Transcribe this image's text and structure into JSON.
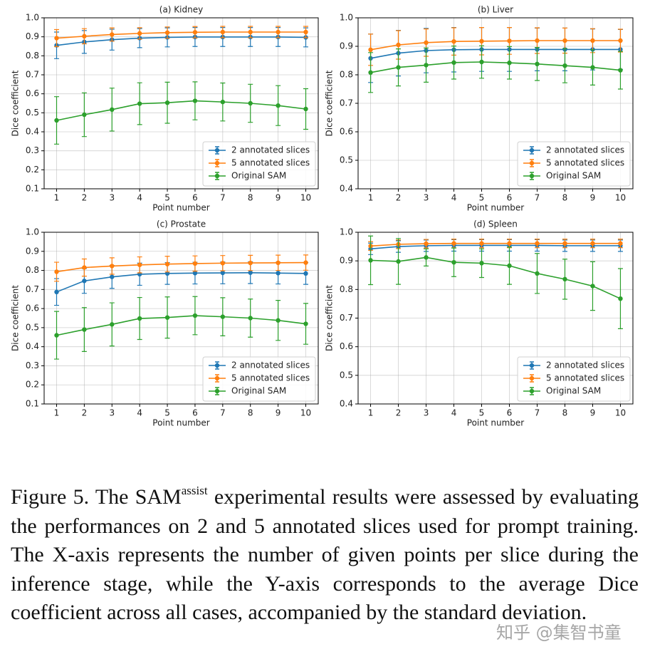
{
  "chart_data": [
    {
      "type": "line",
      "title": "(a) Kidney",
      "xlabel": "Point number",
      "ylabel": "Dice coefficient",
      "x": [
        1,
        2,
        3,
        4,
        5,
        6,
        7,
        8,
        9,
        10
      ],
      "xlim": [
        0.55,
        10.45
      ],
      "xticks": [
        1,
        2,
        3,
        4,
        5,
        6,
        7,
        8,
        9,
        10
      ],
      "ylim": [
        0.1,
        1.0
      ],
      "yticks": [
        0.1,
        0.2,
        0.3,
        0.4,
        0.5,
        0.6,
        0.7,
        0.8,
        0.9,
        {
          "value": 1.0,
          "label": "1.0"
        }
      ],
      "grid": true,
      "legend": "lower right",
      "series": [
        {
          "name": "2 annotated slices",
          "color": "#1f77b4",
          "values": [
            0.855,
            0.873,
            0.885,
            0.893,
            0.897,
            0.899,
            0.899,
            0.899,
            0.899,
            0.897
          ],
          "errors": [
            0.07,
            0.06,
            0.055,
            0.05,
            0.05,
            0.05,
            0.05,
            0.05,
            0.05,
            0.05
          ]
        },
        {
          "name": "5 annotated slices",
          "color": "#ff7f0e",
          "values": [
            0.893,
            0.903,
            0.912,
            0.918,
            0.922,
            0.924,
            0.925,
            0.925,
            0.925,
            0.925
          ],
          "errors": [
            0.045,
            0.04,
            0.035,
            0.03,
            0.03,
            0.03,
            0.03,
            0.03,
            0.03,
            0.03
          ]
        },
        {
          "name": "Original SAM",
          "color": "#2ca02c",
          "values": [
            0.46,
            0.49,
            0.517,
            0.548,
            0.553,
            0.563,
            0.557,
            0.55,
            0.538,
            0.52
          ],
          "errors": [
            0.125,
            0.115,
            0.113,
            0.11,
            0.108,
            0.1,
            0.1,
            0.1,
            0.105,
            0.107
          ]
        }
      ]
    },
    {
      "type": "line",
      "title": "(b) Liver",
      "xlabel": "Point number",
      "ylabel": "Dice coefficient",
      "x": [
        1,
        2,
        3,
        4,
        5,
        6,
        7,
        8,
        9,
        10
      ],
      "xlim": [
        0.55,
        10.45
      ],
      "xticks": [
        1,
        2,
        3,
        4,
        5,
        6,
        7,
        8,
        9,
        10
      ],
      "ylim": [
        0.4,
        1.0
      ],
      "yticks": [
        0.4,
        0.5,
        0.6,
        0.7,
        0.8,
        0.9,
        {
          "value": 1.0,
          "label": "1.0"
        }
      ],
      "grid": true,
      "legend": "lower right",
      "series": [
        {
          "name": "2 annotated slices",
          "color": "#1f77b4",
          "values": [
            0.858,
            0.876,
            0.885,
            0.888,
            0.889,
            0.889,
            0.889,
            0.889,
            0.889,
            0.889
          ],
          "errors": [
            0.085,
            0.08,
            0.078,
            0.078,
            0.077,
            0.077,
            0.075,
            0.075,
            0.072,
            0.07
          ]
        },
        {
          "name": "5 annotated slices",
          "color": "#ff7f0e",
          "values": [
            0.888,
            0.905,
            0.913,
            0.917,
            0.918,
            0.919,
            0.92,
            0.92,
            0.92,
            0.92
          ],
          "errors": [
            0.055,
            0.05,
            0.048,
            0.048,
            0.048,
            0.047,
            0.045,
            0.044,
            0.042,
            0.04
          ]
        },
        {
          "name": "Original SAM",
          "color": "#2ca02c",
          "values": [
            0.808,
            0.826,
            0.834,
            0.843,
            0.845,
            0.842,
            0.838,
            0.832,
            0.826,
            0.816
          ],
          "errors": [
            0.07,
            0.065,
            0.06,
            0.058,
            0.057,
            0.057,
            0.058,
            0.06,
            0.062,
            0.066
          ]
        }
      ]
    },
    {
      "type": "line",
      "title": "(c) Prostate",
      "xlabel": "Point number",
      "ylabel": "Dice coefficient",
      "x": [
        1,
        2,
        3,
        4,
        5,
        6,
        7,
        8,
        9,
        10
      ],
      "xlim": [
        0.55,
        10.45
      ],
      "xticks": [
        1,
        2,
        3,
        4,
        5,
        6,
        7,
        8,
        9,
        10
      ],
      "ylim": [
        0.1,
        1.0
      ],
      "yticks": [
        0.1,
        0.2,
        0.3,
        0.4,
        0.5,
        0.6,
        0.7,
        0.8,
        0.9,
        {
          "value": 1.0,
          "label": "1.0"
        }
      ],
      "grid": true,
      "legend": "lower right",
      "series": [
        {
          "name": "2 annotated slices",
          "color": "#1f77b4",
          "values": [
            0.687,
            0.745,
            0.766,
            0.78,
            0.784,
            0.786,
            0.787,
            0.788,
            0.786,
            0.784
          ],
          "errors": [
            0.07,
            0.065,
            0.06,
            0.058,
            0.057,
            0.057,
            0.057,
            0.057,
            0.057,
            0.057
          ]
        },
        {
          "name": "5 annotated slices",
          "color": "#ff7f0e",
          "values": [
            0.793,
            0.815,
            0.823,
            0.829,
            0.833,
            0.836,
            0.838,
            0.839,
            0.84,
            0.841
          ],
          "errors": [
            0.05,
            0.045,
            0.043,
            0.042,
            0.041,
            0.04,
            0.04,
            0.04,
            0.04,
            0.04
          ]
        },
        {
          "name": "Original SAM",
          "color": "#2ca02c",
          "values": [
            0.46,
            0.49,
            0.517,
            0.548,
            0.553,
            0.563,
            0.557,
            0.55,
            0.538,
            0.52
          ],
          "errors": [
            0.125,
            0.115,
            0.113,
            0.11,
            0.108,
            0.1,
            0.1,
            0.1,
            0.105,
            0.107
          ]
        }
      ]
    },
    {
      "type": "line",
      "title": "(d) Spleen",
      "xlabel": "Point number",
      "ylabel": "Dice coefficient",
      "x": [
        1,
        2,
        3,
        4,
        5,
        6,
        7,
        8,
        9,
        10
      ],
      "xlim": [
        0.55,
        10.45
      ],
      "xticks": [
        1,
        2,
        3,
        4,
        5,
        6,
        7,
        8,
        9,
        10
      ],
      "ylim": [
        0.4,
        1.0
      ],
      "yticks": [
        0.4,
        0.5,
        0.6,
        0.7,
        0.8,
        0.9,
        {
          "value": 1.0,
          "label": "1.0"
        }
      ],
      "grid": true,
      "legend": "lower right",
      "series": [
        {
          "name": "2 annotated slices",
          "color": "#1f77b4",
          "values": [
            0.942,
            0.95,
            0.953,
            0.954,
            0.954,
            0.954,
            0.954,
            0.953,
            0.953,
            0.953
          ],
          "errors": [
            0.02,
            0.02,
            0.02,
            0.02,
            0.02,
            0.02,
            0.02,
            0.02,
            0.02,
            0.02
          ]
        },
        {
          "name": "5 annotated slices",
          "color": "#ff7f0e",
          "values": [
            0.952,
            0.958,
            0.96,
            0.961,
            0.961,
            0.961,
            0.961,
            0.961,
            0.961,
            0.961
          ],
          "errors": [
            0.015,
            0.015,
            0.015,
            0.015,
            0.015,
            0.015,
            0.015,
            0.015,
            0.015,
            0.015
          ]
        },
        {
          "name": "Original SAM",
          "color": "#2ca02c",
          "values": [
            0.902,
            0.898,
            0.912,
            0.895,
            0.892,
            0.883,
            0.856,
            0.836,
            0.812,
            0.768
          ],
          "errors": [
            0.085,
            0.08,
            0.03,
            0.05,
            0.05,
            0.065,
            0.07,
            0.07,
            0.085,
            0.105
          ]
        }
      ]
    }
  ],
  "caption": {
    "prefix": "Figure 5.  The SAM",
    "superscript": "assist",
    "text": " experimental results were assessed by evaluating the performances on 2 and 5 annotated slices used for prompt training. The X-axis represents the number of given points per slice during the inference stage, while the Y-axis corresponds to the average Dice coefficient across all cases, accompanied by the standard deviation."
  },
  "watermark": "知乎 @集智书童"
}
